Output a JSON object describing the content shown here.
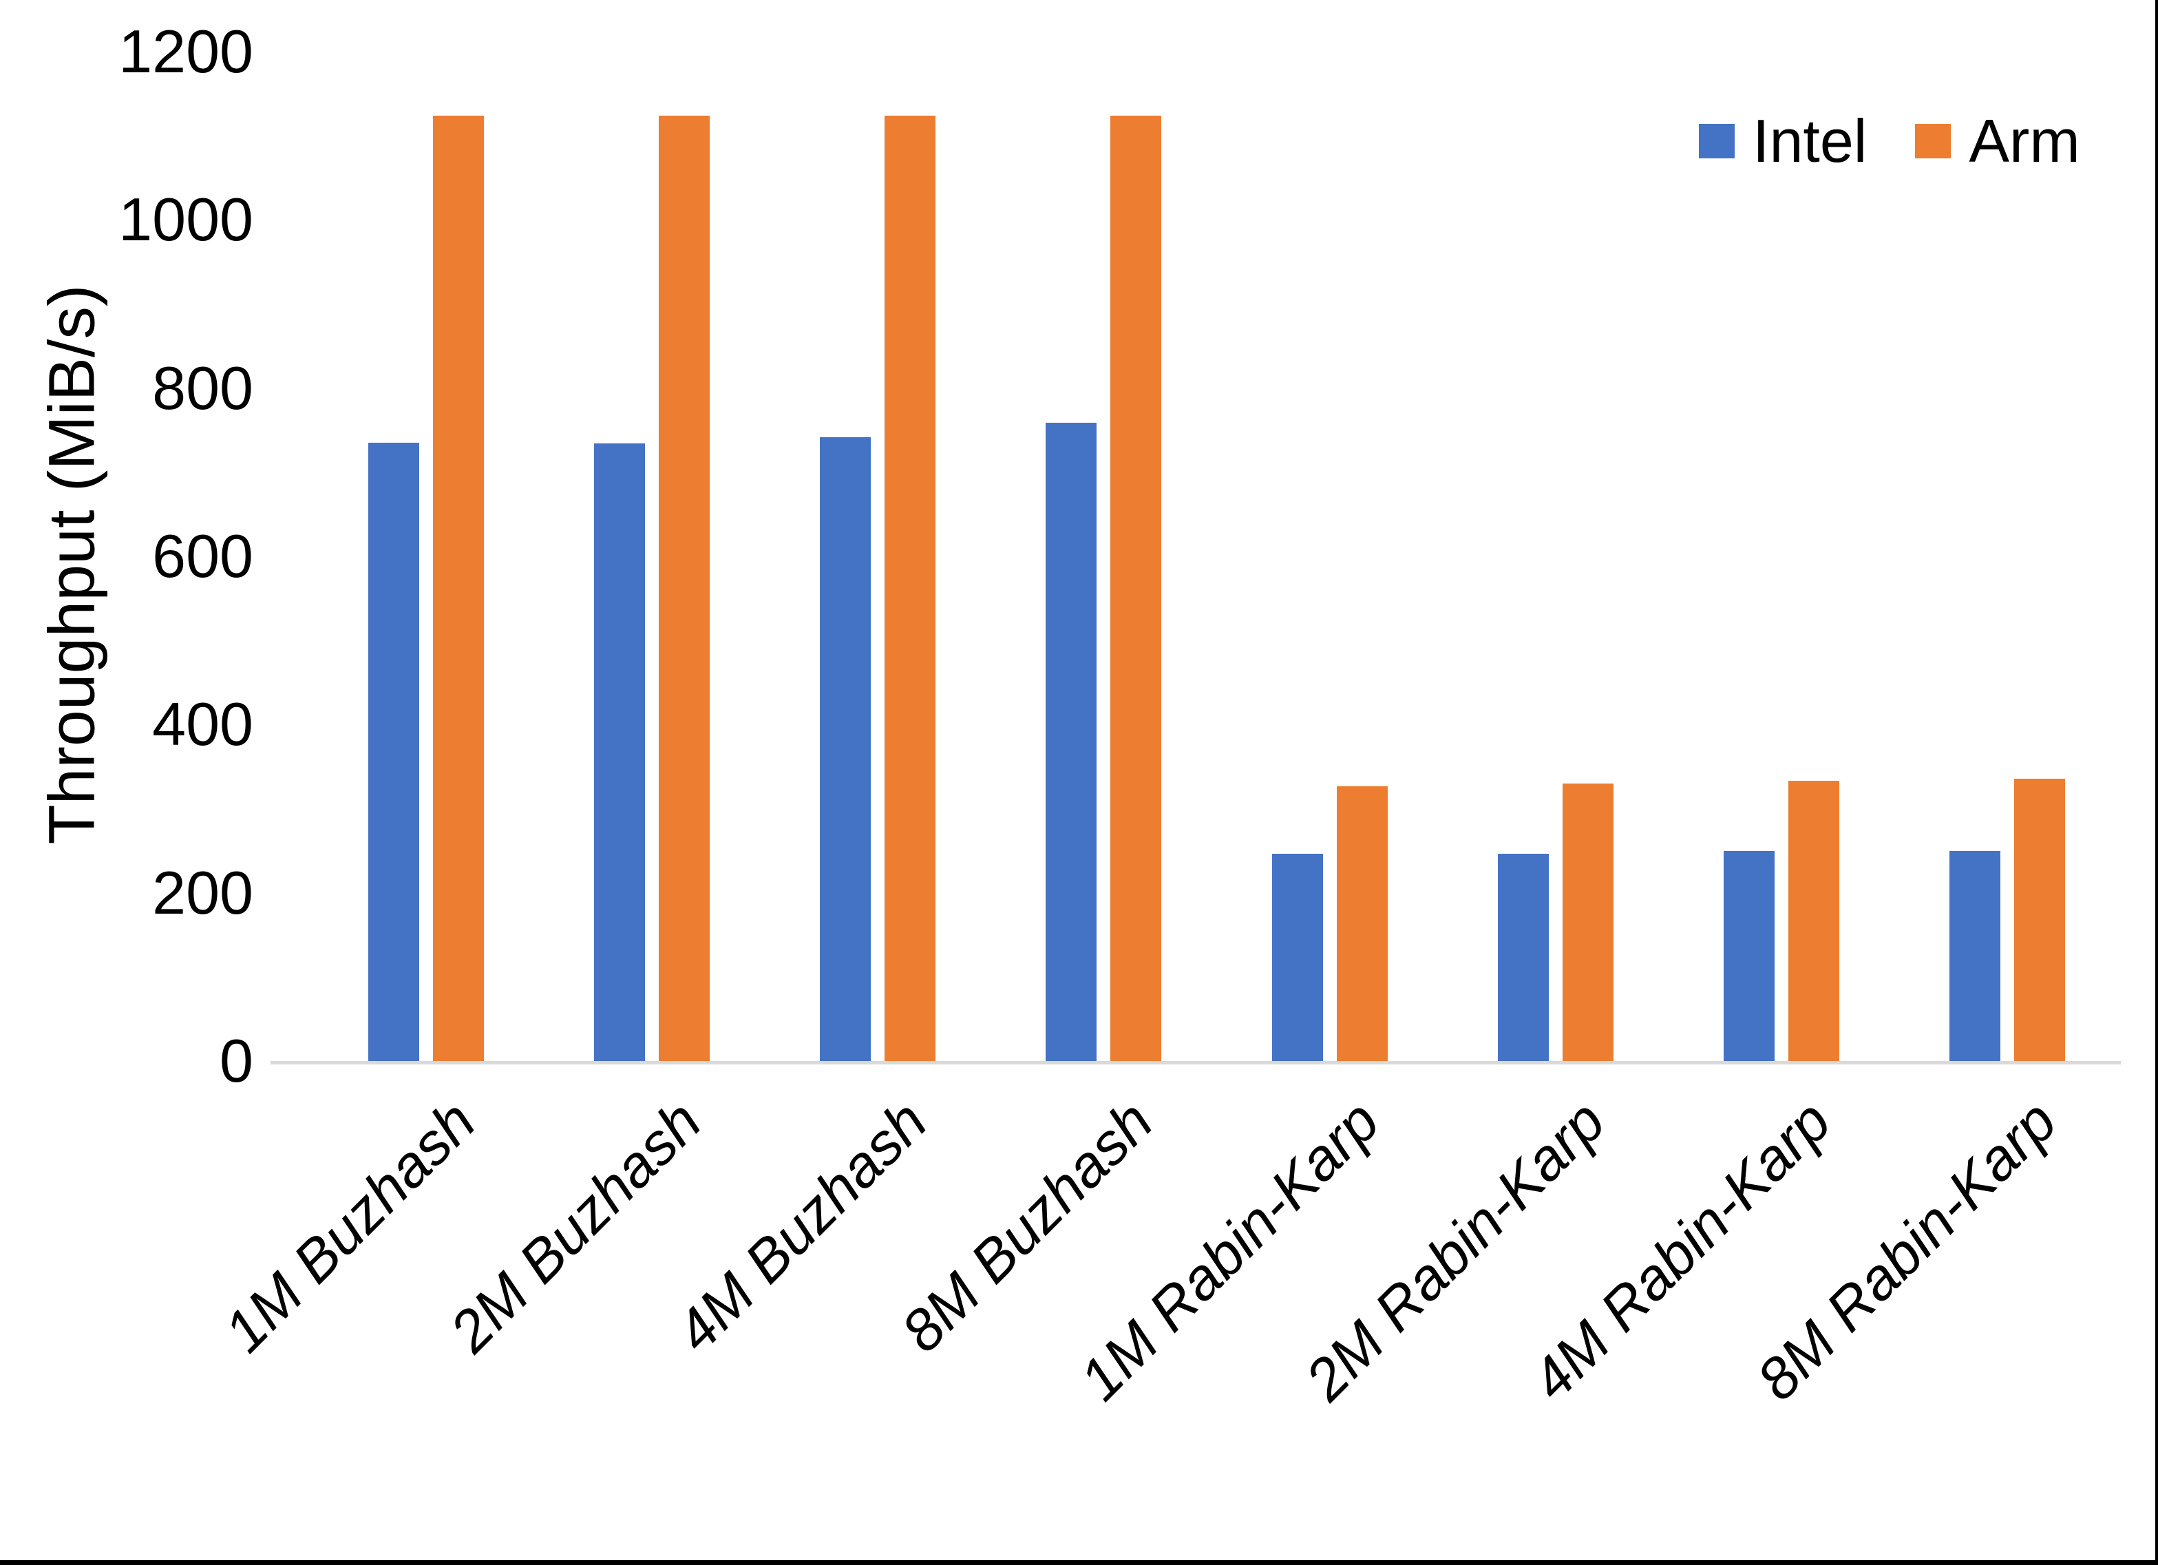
{
  "chart_data": {
    "type": "bar",
    "title": "",
    "ylabel": "Throughput (MiB/s)",
    "categories": [
      "1M Buzhash",
      "2M Buzhash",
      "4M Buzhash",
      "8M Buzhash",
      "1M Rabin-Karp",
      "2M Rabin-Karp",
      "4M Rabin-Karp",
      "8M Rabin-Karp"
    ],
    "series": [
      {
        "name": "Intel",
        "color": "#4472C4",
        "values": [
          735,
          734,
          742,
          759,
          246,
          246,
          250,
          250
        ]
      },
      {
        "name": "Arm",
        "color": "#ED7D31",
        "values": [
          1124,
          1124,
          1124,
          1124,
          327,
          330,
          333,
          336
        ]
      }
    ],
    "ylim": [
      0,
      1200
    ],
    "yticks": [
      0,
      200,
      400,
      600,
      800,
      1000,
      1200
    ],
    "grid": false,
    "legend_position": "top-right",
    "axis_line_color": "#D9D9D9",
    "text_color": "#000000"
  }
}
